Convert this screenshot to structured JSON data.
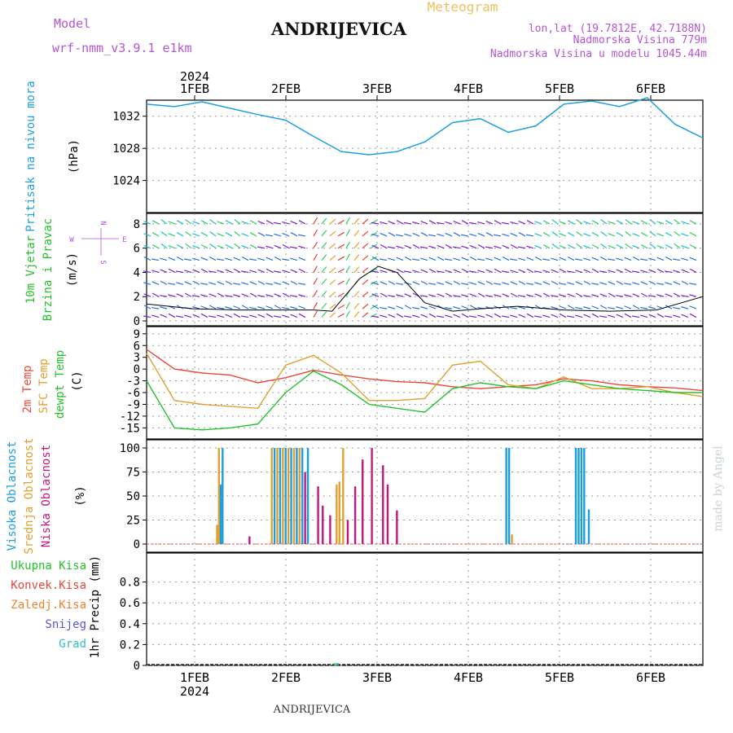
{
  "header": {
    "model_label": "Model",
    "model_name": "wrf-nmm_v3.9.1 e1km",
    "station": "ANDRIJEVICA",
    "title": "Meteogram",
    "coords": "lon,lat (19.7812E, 42.7188N)",
    "elevation": "Nadmorska Visina 779m",
    "model_elevation": "Nadmorska Visina u modelu 1045.44m",
    "watermark": "made by Angel",
    "footer_station": "ANDRIJEVICA"
  },
  "colors": {
    "pressure": "#1ea0e0",
    "temp2m": "#e8473a",
    "sfc_temp": "#e0a030",
    "dewpoint": "#22c32a",
    "high_cloud": "#1a9ee0",
    "mid_cloud": "#e0a030",
    "low_cloud": "#c2177f",
    "grid": "#999999",
    "title_orange": "#f0c060",
    "purple_text": "#b455d6"
  },
  "chart_data": [
    {
      "type": "line",
      "name": "pressure",
      "ylabel_lines": [
        "Pritisak na nivou mora",
        "(hPa)"
      ],
      "ylabel_colors": [
        "#1ea0e0",
        "#000000"
      ],
      "ylim": [
        1020,
        1034
      ],
      "yticks": [
        1024,
        1028,
        1032
      ],
      "top_axis_year": "2024",
      "top_axis_labels": [
        "1FEB",
        "2FEB",
        "3FEB",
        "4FEB",
        "5FEB",
        "6FEB"
      ],
      "x": [
        0,
        0.3,
        0.6,
        0.9,
        1.2,
        1.5,
        1.8,
        2.1,
        2.4,
        2.7,
        3.0,
        3.3,
        3.6,
        3.9,
        4.2,
        4.5,
        4.8,
        5.1,
        5.4,
        5.7,
        6.0
      ],
      "values": [
        1033.5,
        1033.2,
        1033.8,
        1033,
        1032.2,
        1031.5,
        1029.5,
        1027.6,
        1027.2,
        1027.6,
        1028.8,
        1031.2,
        1031.7,
        1030,
        1030.8,
        1033.5,
        1033.9,
        1033.2,
        1034.3,
        1031,
        1029.3
      ]
    },
    {
      "type": "line",
      "name": "wind",
      "ylabel_lines": [
        "10m Vjetar",
        "Brzina i Pravac",
        "(m/s)"
      ],
      "ylabel_colors": [
        "#22c32a",
        "#22c32a",
        "#000000"
      ],
      "compass": [
        "N",
        "E",
        "W",
        "S"
      ],
      "ylim": [
        0,
        8.6
      ],
      "yticks": [
        0,
        2,
        4,
        6,
        8
      ],
      "speed_x": [
        0,
        0.5,
        1.0,
        1.5,
        1.8,
        2.0,
        2.3,
        2.5,
        2.7,
        3.0,
        3.3,
        3.6,
        4.0,
        4.5,
        5.0,
        5.5,
        6.0
      ],
      "speed_values": [
        1.4,
        1.0,
        0.9,
        0.9,
        0.9,
        0.8,
        3.5,
        4.5,
        4.0,
        1.5,
        0.8,
        1.0,
        1.2,
        0.9,
        0.8,
        0.9,
        2.0
      ]
    },
    {
      "type": "line",
      "name": "temperature",
      "ylabel_lines": [
        "2m Temp",
        "SFC Temp",
        "dewpt Temp",
        "(C)"
      ],
      "ylabel_colors": [
        "#e8473a",
        "#e0a030",
        "#22c32a",
        "#000000"
      ],
      "ylim": [
        -17,
        10
      ],
      "yticks": [
        -15,
        -12,
        -9,
        -6,
        -3,
        0,
        3,
        6,
        9
      ],
      "x": [
        0,
        0.3,
        0.6,
        0.9,
        1.2,
        1.5,
        1.8,
        2.1,
        2.4,
        2.7,
        3.0,
        3.3,
        3.6,
        3.9,
        4.2,
        4.5,
        4.8,
        5.1,
        5.4,
        5.7,
        6.0
      ],
      "series": [
        {
          "name": "2m Temp",
          "values": [
            5,
            0,
            -1,
            -1.5,
            -3.5,
            -2.2,
            -0.3,
            -1.5,
            -2.5,
            -3.2,
            -3.5,
            -4.5,
            -5,
            -4.5,
            -4,
            -2.5,
            -3,
            -4,
            -4.5,
            -4.8,
            -5.5
          ]
        },
        {
          "name": "SFC Temp",
          "values": [
            4,
            -8,
            -9,
            -9.5,
            -10,
            1,
            3.5,
            -1,
            -8,
            -8,
            -7.5,
            1,
            2,
            -4,
            -5,
            -2,
            -5,
            -5,
            -4.5,
            -6,
            -7
          ]
        },
        {
          "name": "dewpt Temp",
          "values": [
            -3,
            -15,
            -15.5,
            -15,
            -14,
            -6,
            -0.5,
            -4,
            -9,
            -10,
            -11,
            -5,
            -3.5,
            -4.5,
            -5,
            -3,
            -4,
            -5,
            -5.5,
            -6,
            -6
          ]
        }
      ]
    },
    {
      "type": "bar",
      "name": "cloudiness",
      "ylabel_lines": [
        "Visoka Oblacnost",
        "Srednja Oblacnost",
        "Niska Oblacnost",
        "(%)"
      ],
      "ylabel_colors": [
        "#1a9ee0",
        "#e0a030",
        "#c2177f",
        "#000000"
      ],
      "ylim": [
        0,
        100
      ],
      "yticks": [
        0,
        25,
        50,
        75,
        100
      ]
    },
    {
      "type": "bar",
      "name": "precipitation",
      "ylabel_lines": [
        "1hr Precip (mm)"
      ],
      "legend": [
        {
          "label": "Ukupna Kisa",
          "color": "#22c32a"
        },
        {
          "label": "Konvek.Kisa",
          "color": "#e8473a"
        },
        {
          "label": "Zaledj.Kisa",
          "color": "#f08030"
        },
        {
          "label": "Snijeg",
          "color": "#5555dd"
        },
        {
          "label": "Grad",
          "color": "#30c0c0"
        }
      ],
      "ylim": [
        0,
        1
      ],
      "yticks": [
        0,
        0.2,
        0.4,
        0.6,
        0.8
      ],
      "bottom_axis_labels": [
        "1FEB",
        "2FEB",
        "3FEB",
        "4FEB",
        "5FEB",
        "6FEB"
      ],
      "bottom_axis_year": "2024"
    }
  ]
}
